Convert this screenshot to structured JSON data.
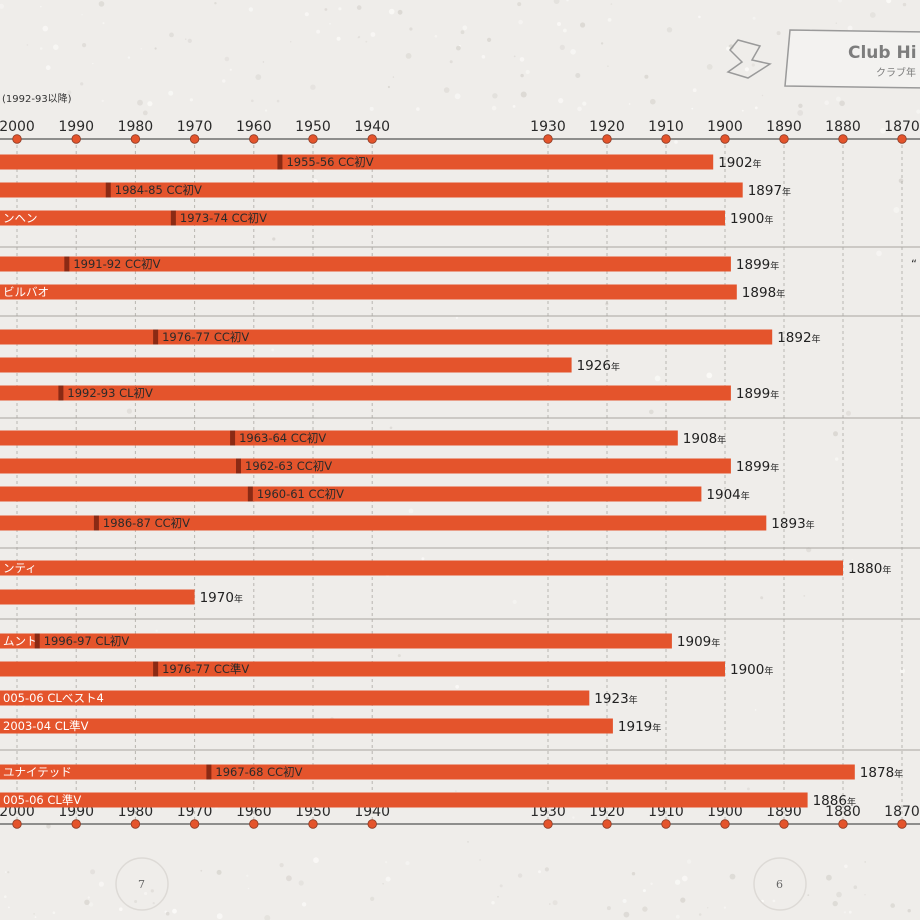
{
  "header": {
    "subtitle": "(1992-93以降)",
    "badge_title": "Club Hi",
    "badge_sub": "クラブ年"
  },
  "pages": {
    "left": "7",
    "right": "6"
  },
  "colors": {
    "bar": "#e4542c",
    "marker": "#8a2a14",
    "tick_dot": "#e4542c",
    "axis": "#555555",
    "grid": "#b9b6b1",
    "group_line": "#a8a5a0"
  },
  "chart_data": {
    "type": "bar",
    "orientation": "horizontal",
    "x_axis": {
      "reversed": true,
      "ticks": [
        2000,
        1990,
        1980,
        1970,
        1960,
        1950,
        1940,
        1930,
        1920,
        1910,
        1900,
        1890,
        1880,
        1870
      ]
    },
    "year_suffix": "年",
    "grid": true,
    "rows": [
      {
        "label": "",
        "founded": 1902,
        "milestone": {
          "year": 1955.5,
          "text": "1955-56 CC初V"
        }
      },
      {
        "label": "",
        "founded": 1897,
        "milestone": {
          "year": 1984.5,
          "text": "1984-85 CC初V"
        }
      },
      {
        "label": "ンヘン",
        "founded": 1900,
        "milestone": {
          "year": 1973.5,
          "text": "1973-74 CC初V"
        }
      },
      {
        "label": "",
        "founded": 1899,
        "milestone": {
          "year": 1991.5,
          "text": "1991-92 CC初V"
        }
      },
      {
        "label": "ビルバオ",
        "founded": 1898,
        "milestone": null
      },
      {
        "label": "",
        "founded": 1892,
        "milestone": {
          "year": 1976.5,
          "text": "1976-77 CC初V"
        }
      },
      {
        "label": "",
        "founded": 1926,
        "milestone": null
      },
      {
        "label": "",
        "founded": 1899,
        "milestone": {
          "year": 1992.5,
          "text": "1992-93 CL初V"
        }
      },
      {
        "label": "",
        "founded": 1908,
        "milestone": {
          "year": 1963.5,
          "text": "1963-64 CC初V"
        }
      },
      {
        "label": "",
        "founded": 1899,
        "milestone": {
          "year": 1962.5,
          "text": "1962-63 CC初V"
        }
      },
      {
        "label": "",
        "founded": 1904,
        "milestone": {
          "year": 1960.5,
          "text": "1960-61 CC初V"
        }
      },
      {
        "label": "",
        "founded": 1893,
        "milestone": {
          "year": 1986.5,
          "text": "1986-87 CC初V"
        }
      },
      {
        "label": "ンティ",
        "founded": 1880,
        "milestone": null
      },
      {
        "label": "",
        "founded": 1970,
        "milestone": null
      },
      {
        "label": "ムント",
        "founded": 1909,
        "milestone": {
          "year": 1996.5,
          "text": "1996-97 CL初V"
        }
      },
      {
        "label": "",
        "founded": 1900,
        "milestone": {
          "year": 1976.5,
          "text": "1976-77 CC準V"
        }
      },
      {
        "label": "005-06 CLベスト4",
        "founded": 1923,
        "milestone": null
      },
      {
        "label": "2003-04 CL準V",
        "founded": 1919,
        "milestone": null
      },
      {
        "label": "ユナイテッド",
        "founded": 1878,
        "milestone": {
          "year": 1967.5,
          "text": "1967-68 CC初V"
        }
      },
      {
        "label": "005-06 CL準V",
        "founded": 1886,
        "milestone": null
      }
    ]
  }
}
